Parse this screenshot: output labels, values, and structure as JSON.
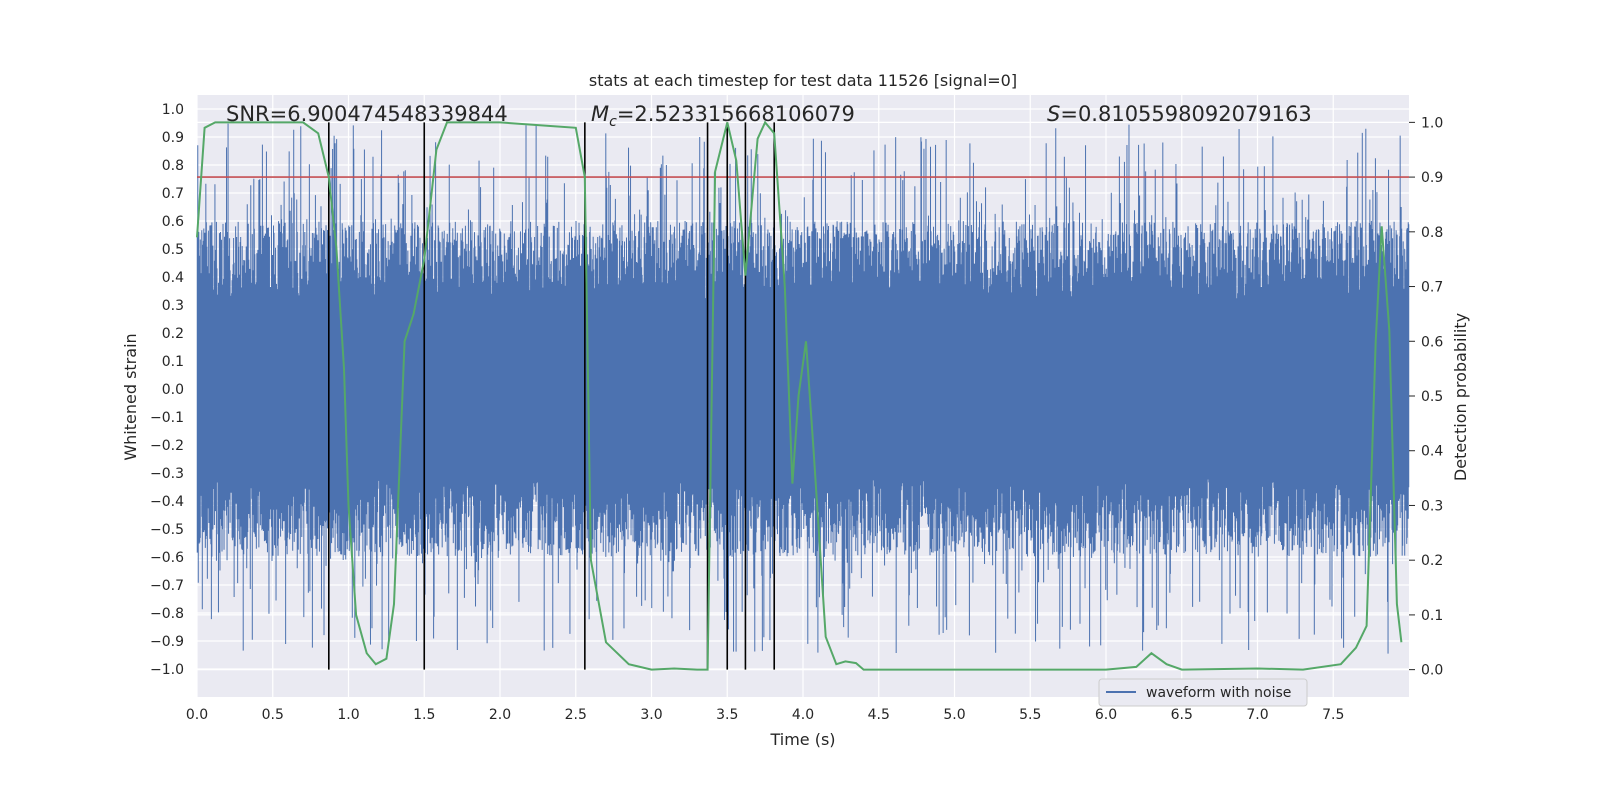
{
  "chart_data": {
    "type": "line",
    "title": "stats at each timestep for test data 11526 [signal=0]",
    "xlabel": "Time (s)",
    "ylabel_left": "Whitened strain",
    "ylabel_right": "Detection probability",
    "xlim": [
      0.0,
      8.0
    ],
    "ylim_left": [
      -1.1,
      1.05
    ],
    "ylim_right": [
      -0.05,
      1.05
    ],
    "grid": true,
    "x_ticks": [
      "0.0",
      "0.5",
      "1.0",
      "1.5",
      "2.0",
      "2.5",
      "3.0",
      "3.5",
      "4.0",
      "4.5",
      "5.0",
      "5.5",
      "6.0",
      "6.5",
      "7.0",
      "7.5"
    ],
    "left_ticks": [
      "1.0",
      "0.9",
      "0.8",
      "0.7",
      "0.6",
      "0.5",
      "0.4",
      "0.3",
      "0.2",
      "0.1",
      "0.0",
      "−0.1",
      "−0.2",
      "−0.3",
      "−0.4",
      "−0.5",
      "−0.6",
      "−0.7",
      "−0.8",
      "−0.9",
      "−1.0"
    ],
    "right_ticks": [
      "1.0",
      "0.9",
      "0.8",
      "0.7",
      "0.6",
      "0.5",
      "0.4",
      "0.3",
      "0.2",
      "0.1",
      "0.0"
    ],
    "annotations": {
      "snr": "SNR=6.900474548339844",
      "mc_symbol": "M",
      "mc_sub": "c",
      "mc_value": "=2.523315668106079",
      "s_symbol": "S",
      "s_value": "=0.8105598092079163"
    },
    "threshold": {
      "value": 0.9,
      "axis": "right",
      "color": "#c44e52"
    },
    "vertical_markers": [
      0.87,
      1.5,
      2.56,
      3.37,
      3.5,
      3.62,
      3.81
    ],
    "waveform": {
      "name": "waveform with noise",
      "color": "#4c72b0",
      "core_amplitude": 0.6,
      "spike_max": 0.95
    },
    "probability": {
      "name": "detection probability",
      "color": "#55a868",
      "points": [
        [
          0.0,
          0.79
        ],
        [
          0.05,
          0.99
        ],
        [
          0.12,
          1.0
        ],
        [
          0.7,
          1.0
        ],
        [
          0.8,
          0.98
        ],
        [
          0.87,
          0.9
        ],
        [
          0.92,
          0.77
        ],
        [
          0.97,
          0.55
        ],
        [
          1.0,
          0.3
        ],
        [
          1.05,
          0.1
        ],
        [
          1.12,
          0.03
        ],
        [
          1.18,
          0.01
        ],
        [
          1.25,
          0.02
        ],
        [
          1.3,
          0.12
        ],
        [
          1.37,
          0.6
        ],
        [
          1.43,
          0.65
        ],
        [
          1.5,
          0.75
        ],
        [
          1.58,
          0.95
        ],
        [
          1.65,
          1.0
        ],
        [
          2.0,
          1.0
        ],
        [
          2.5,
          0.99
        ],
        [
          2.56,
          0.9
        ],
        [
          2.6,
          0.2
        ],
        [
          2.7,
          0.05
        ],
        [
          2.85,
          0.01
        ],
        [
          3.0,
          0.0
        ],
        [
          3.15,
          0.002
        ],
        [
          3.3,
          0.0
        ],
        [
          3.37,
          0.0
        ],
        [
          3.42,
          0.91
        ],
        [
          3.5,
          1.0
        ],
        [
          3.56,
          0.93
        ],
        [
          3.62,
          0.72
        ],
        [
          3.7,
          0.97
        ],
        [
          3.75,
          1.0
        ],
        [
          3.81,
          0.98
        ],
        [
          3.88,
          0.7
        ],
        [
          3.93,
          0.34
        ],
        [
          3.97,
          0.5
        ],
        [
          4.02,
          0.6
        ],
        [
          4.07,
          0.4
        ],
        [
          4.15,
          0.06
        ],
        [
          4.22,
          0.01
        ],
        [
          4.28,
          0.015
        ],
        [
          4.35,
          0.012
        ],
        [
          4.4,
          0.0
        ],
        [
          5.0,
          0.0
        ],
        [
          5.5,
          0.0
        ],
        [
          6.0,
          0.0
        ],
        [
          6.2,
          0.005
        ],
        [
          6.3,
          0.03
        ],
        [
          6.4,
          0.01
        ],
        [
          6.5,
          0.0
        ],
        [
          7.0,
          0.002
        ],
        [
          7.3,
          0.0
        ],
        [
          7.55,
          0.01
        ],
        [
          7.65,
          0.04
        ],
        [
          7.72,
          0.08
        ],
        [
          7.78,
          0.6
        ],
        [
          7.82,
          0.81
        ],
        [
          7.87,
          0.62
        ],
        [
          7.92,
          0.12
        ],
        [
          7.95,
          0.05
        ]
      ]
    }
  }
}
